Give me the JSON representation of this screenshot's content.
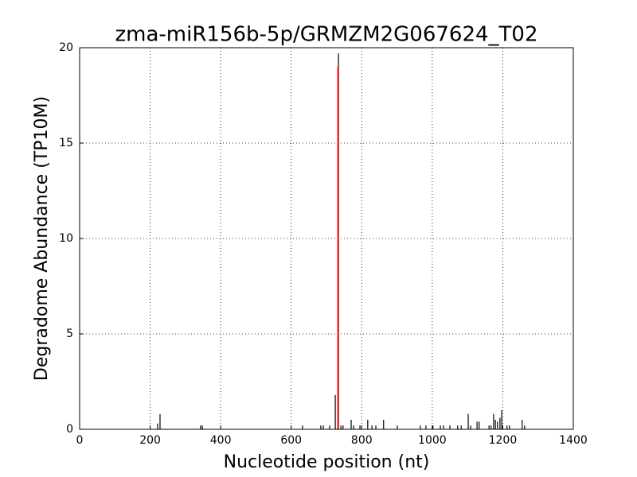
{
  "chart_data": {
    "type": "stem",
    "title": "zma-miR156b-5p/GRMZM2G067624_T02",
    "x_label": "Nucleotide position (nt)",
    "y_label": "Degradome Abundance (TP10M)",
    "xlim": [
      0,
      1400
    ],
    "xticks": [
      0,
      200,
      400,
      600,
      800,
      1000,
      1200,
      1400
    ],
    "ylim": [
      0,
      20
    ],
    "yticks": [
      0,
      5,
      10,
      15,
      20
    ],
    "grid": true,
    "series": [
      {
        "color": "#000000",
        "x": [
          221,
          228,
          343,
          348,
          632,
          684,
          691,
          709,
          725,
          734,
          741,
          747,
          770,
          777,
          795,
          817,
          829,
          840,
          862,
          901,
          966,
          982,
          1002,
          1023,
          1032,
          1050,
          1072,
          1082,
          1102,
          1109,
          1127,
          1133,
          1161,
          1167,
          1174,
          1179,
          1185,
          1192,
          1197,
          1212,
          1219,
          1255,
          1262
        ],
        "values": [
          0.3,
          0.8,
          0.2,
          0.2,
          0.2,
          0.2,
          0.2,
          0.2,
          1.8,
          19.7,
          0.2,
          0.2,
          0.5,
          0.2,
          0.2,
          0.5,
          0.2,
          0.2,
          0.5,
          0.2,
          0.2,
          0.2,
          0.2,
          0.2,
          0.2,
          0.2,
          0.2,
          0.2,
          0.8,
          0.2,
          0.4,
          0.4,
          0.2,
          0.2,
          0.8,
          0.5,
          0.4,
          0.6,
          1.0,
          0.2,
          0.2,
          0.5,
          0.2
        ]
      },
      {
        "color": "#ff0000",
        "x": [
          733
        ],
        "values": [
          19
        ]
      }
    ]
  }
}
